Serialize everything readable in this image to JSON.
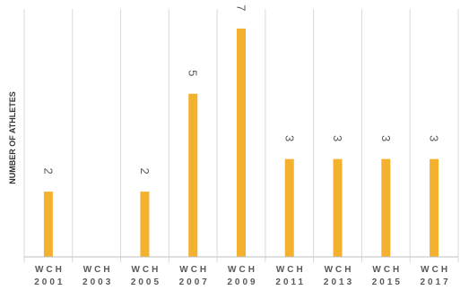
{
  "chart_data": {
    "type": "bar",
    "title": "",
    "xlabel": "",
    "ylabel": "NUMBER OF ATHLETES",
    "categories": [
      [
        "WCH",
        "2001"
      ],
      [
        "WCH",
        "2003"
      ],
      [
        "WCH",
        "2005"
      ],
      [
        "WCH",
        "2007"
      ],
      [
        "WCH",
        "2009"
      ],
      [
        "WCH",
        "2011"
      ],
      [
        "WCH",
        "2013"
      ],
      [
        "WCH",
        "2015"
      ],
      [
        "WCH",
        "2017"
      ]
    ],
    "values": [
      2,
      0,
      2,
      5,
      7,
      3,
      3,
      3,
      3
    ],
    "data_labels": [
      "2",
      "",
      "2",
      "5",
      "7",
      "3",
      "3",
      "3",
      "3"
    ],
    "ylim": [
      0,
      7.6
    ],
    "grid": "vertical category separators",
    "legend": "none",
    "bar_color": "#F4B12E",
    "gridline_color": "#D9D9D9",
    "axis_color": "#BFBFBF",
    "text_color": "#595959"
  }
}
